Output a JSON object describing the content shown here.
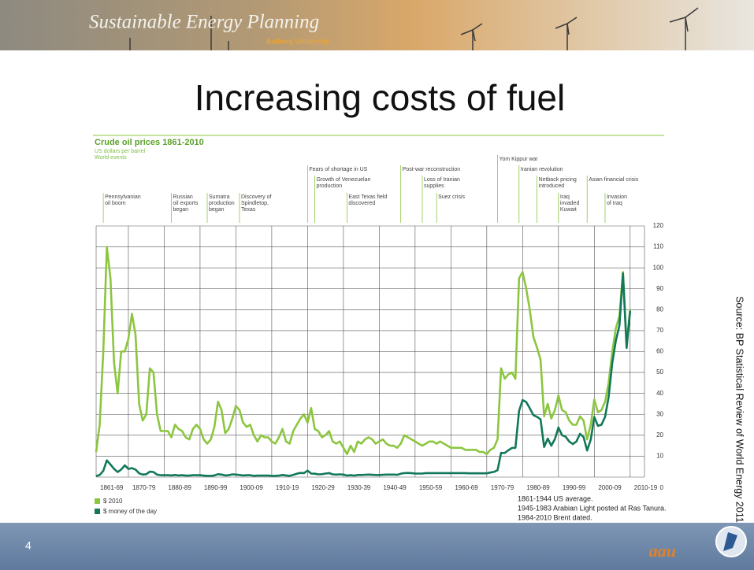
{
  "header": {
    "title": "Sustainable Energy Planning",
    "subtitle": "Aalborg University"
  },
  "slide": {
    "title": "Increasing costs of fuel",
    "source": "Source: BP Statistical Review of World Energy 2011",
    "page": "4",
    "logo": "aau"
  },
  "chart_data": {
    "type": "line",
    "title": "Crude oil prices 1861-2010",
    "subtitle": "US dollars per barrel",
    "events_heading": "World events",
    "events": [
      {
        "x": 1863,
        "lines": [
          "Pennsylvanian",
          "oil boom"
        ]
      },
      {
        "x": 1882,
        "lines": [
          "Russian",
          "oil exports",
          "began"
        ]
      },
      {
        "x": 1892,
        "lines": [
          "Sumatra",
          "production",
          "began"
        ]
      },
      {
        "x": 1901,
        "lines": [
          "Discovery of",
          "Spindletop,",
          "Texas"
        ]
      },
      {
        "x": 1920,
        "lines": [
          "Fears of shortage in US"
        ]
      },
      {
        "x": 1922,
        "lines": [
          "Growth of Venezuelan",
          "production"
        ]
      },
      {
        "x": 1931,
        "lines": [
          "East Texas field",
          "discovered"
        ]
      },
      {
        "x": 1946,
        "lines": [
          "Post-war reconstruction"
        ]
      },
      {
        "x": 1952,
        "lines": [
          "Loss of Iranian",
          "supplies"
        ]
      },
      {
        "x": 1956,
        "lines": [
          "Suez crisis"
        ]
      },
      {
        "x": 1973,
        "lines": [
          "Yom Kippur war"
        ]
      },
      {
        "x": 1979,
        "lines": [
          "Iranian revolution"
        ]
      },
      {
        "x": 1984,
        "lines": [
          "Netback pricing",
          "introduced"
        ]
      },
      {
        "x": 1990,
        "lines": [
          "Iraq",
          "invaded",
          "Kuwait"
        ]
      },
      {
        "x": 1998,
        "lines": [
          "Asian financial crisis"
        ]
      },
      {
        "x": 2003,
        "lines": [
          "Invasion",
          "of Iraq"
        ]
      }
    ],
    "x": [
      1861,
      1862,
      1863,
      1864,
      1865,
      1866,
      1867,
      1868,
      1869,
      1870,
      1871,
      1872,
      1873,
      1874,
      1875,
      1876,
      1877,
      1878,
      1879,
      1880,
      1881,
      1882,
      1883,
      1884,
      1885,
      1886,
      1887,
      1888,
      1889,
      1890,
      1891,
      1892,
      1893,
      1894,
      1895,
      1896,
      1897,
      1898,
      1899,
      1900,
      1901,
      1902,
      1903,
      1904,
      1905,
      1906,
      1907,
      1908,
      1909,
      1910,
      1911,
      1912,
      1913,
      1914,
      1915,
      1916,
      1917,
      1918,
      1919,
      1920,
      1921,
      1922,
      1923,
      1924,
      1925,
      1926,
      1927,
      1928,
      1929,
      1930,
      1931,
      1932,
      1933,
      1934,
      1935,
      1936,
      1937,
      1938,
      1939,
      1940,
      1941,
      1942,
      1943,
      1944,
      1945,
      1946,
      1947,
      1948,
      1949,
      1950,
      1951,
      1952,
      1953,
      1954,
      1955,
      1956,
      1957,
      1958,
      1959,
      1960,
      1961,
      1962,
      1963,
      1964,
      1965,
      1966,
      1967,
      1968,
      1969,
      1970,
      1971,
      1972,
      1973,
      1974,
      1975,
      1976,
      1977,
      1978,
      1979,
      1980,
      1981,
      1982,
      1983,
      1984,
      1985,
      1986,
      1987,
      1988,
      1989,
      1990,
      1991,
      1992,
      1993,
      1994,
      1995,
      1996,
      1997,
      1998,
      1999,
      2000,
      2001,
      2002,
      2003,
      2004,
      2005,
      2006,
      2007,
      2008,
      2009,
      2010
    ],
    "series": [
      {
        "name": "$ 2010",
        "color": "#8cc63f",
        "values": [
          12,
          25,
          60,
          110,
          95,
          55,
          40,
          60,
          60,
          66,
          78,
          68,
          35,
          27,
          30,
          52,
          50,
          30,
          22,
          22,
          22,
          19,
          25,
          23,
          22,
          19,
          18,
          23,
          25,
          23,
          18,
          16,
          18,
          24,
          36,
          32,
          21,
          23,
          28,
          34,
          32,
          26,
          24,
          25,
          20,
          17,
          20,
          19,
          19,
          17,
          16,
          19,
          23,
          17,
          16,
          22,
          25,
          28,
          30,
          26,
          33,
          23,
          22,
          19,
          20,
          22,
          17,
          16,
          17,
          14,
          11,
          15,
          12,
          17,
          16,
          18,
          19,
          18,
          16,
          17,
          18,
          16,
          15,
          15,
          14,
          16,
          20,
          19,
          18,
          17,
          16,
          15,
          16,
          17,
          17,
          16,
          17,
          16,
          15,
          14,
          14,
          14,
          14,
          13,
          13,
          13,
          13,
          12,
          12,
          11,
          13,
          14,
          18,
          52,
          47,
          49,
          50,
          47,
          95,
          98,
          90,
          80,
          67,
          62,
          56,
          29,
          35,
          28,
          32,
          39,
          32,
          31,
          27,
          25,
          25,
          29,
          27,
          18,
          25,
          37,
          31,
          32,
          36,
          45,
          60,
          71,
          77,
          98,
          64,
          80
        ]
      },
      {
        "name": "$ money of the day",
        "color": "#11785a",
        "values": [
          0.5,
          1,
          3,
          8,
          6,
          4,
          2.4,
          3.6,
          5.6,
          3.9,
          4.3,
          3.6,
          1.8,
          1.2,
          1.4,
          2.6,
          2.4,
          1.2,
          0.9,
          0.9,
          0.9,
          0.8,
          1,
          0.8,
          0.9,
          0.7,
          0.7,
          0.9,
          0.9,
          0.9,
          0.7,
          0.6,
          0.6,
          0.8,
          1.4,
          1.2,
          0.8,
          0.9,
          1.3,
          1.2,
          1,
          0.8,
          0.9,
          0.9,
          0.6,
          0.7,
          0.7,
          0.7,
          0.7,
          0.6,
          0.6,
          0.7,
          1,
          0.8,
          0.6,
          1.1,
          1.6,
          2,
          1.9,
          3.1,
          1.7,
          1.6,
          1.3,
          1.4,
          1.7,
          1.9,
          1.3,
          1.2,
          1.3,
          1.2,
          0.7,
          0.9,
          0.7,
          1,
          1,
          1.1,
          1.2,
          1.1,
          1,
          1,
          1.1,
          1.2,
          1.2,
          1.2,
          1.1,
          1.6,
          1.9,
          2,
          1.9,
          1.7,
          1.7,
          1.7,
          1.9,
          1.9,
          1.9,
          1.9,
          1.9,
          1.9,
          1.9,
          1.9,
          1.9,
          1.9,
          1.9,
          1.9,
          1.8,
          1.8,
          1.8,
          1.8,
          1.8,
          1.8,
          2.2,
          2.5,
          3.3,
          11.6,
          11.5,
          12.8,
          13.9,
          14,
          31.6,
          36.8,
          35.9,
          32.9,
          29.6,
          28.8,
          27.6,
          14.4,
          18.4,
          15,
          18.2,
          23.7,
          20,
          19.3,
          17,
          15.8,
          17,
          20.7,
          19.1,
          12.7,
          17.9,
          28.7,
          24.5,
          25,
          28.8,
          38.3,
          54.5,
          65.1,
          72.4,
          97.3,
          61.7,
          79.5
        ]
      }
    ],
    "xlim": [
      1861,
      2014
    ],
    "xticks": [
      {
        "value": 1861,
        "label": "1861-69"
      },
      {
        "value": 1870,
        "label": "1870-79"
      },
      {
        "value": 1880,
        "label": "1880-89"
      },
      {
        "value": 1890,
        "label": "1890-99"
      },
      {
        "value": 1900,
        "label": "1900-09"
      },
      {
        "value": 1910,
        "label": "1910-19"
      },
      {
        "value": 1920,
        "label": "1920-29"
      },
      {
        "value": 1930,
        "label": "1930-39"
      },
      {
        "value": 1940,
        "label": "1940-49"
      },
      {
        "value": 1950,
        "label": "1950-59"
      },
      {
        "value": 1960,
        "label": "1960-69"
      },
      {
        "value": 1970,
        "label": "1970-79"
      },
      {
        "value": 1980,
        "label": "1980-89"
      },
      {
        "value": 1990,
        "label": "1990-99"
      },
      {
        "value": 2000,
        "label": "2000-09"
      },
      {
        "value": 2010,
        "label": "2010-19"
      }
    ],
    "ylim": [
      0,
      120
    ],
    "yticks": [
      0,
      10,
      20,
      30,
      40,
      50,
      60,
      70,
      80,
      90,
      100,
      110,
      120
    ],
    "grid": true,
    "notes": [
      "1861-1944 US average.",
      "1945-1983 Arabian Light posted at Ras Tanura.",
      "1984-2010 Brent dated."
    ]
  }
}
